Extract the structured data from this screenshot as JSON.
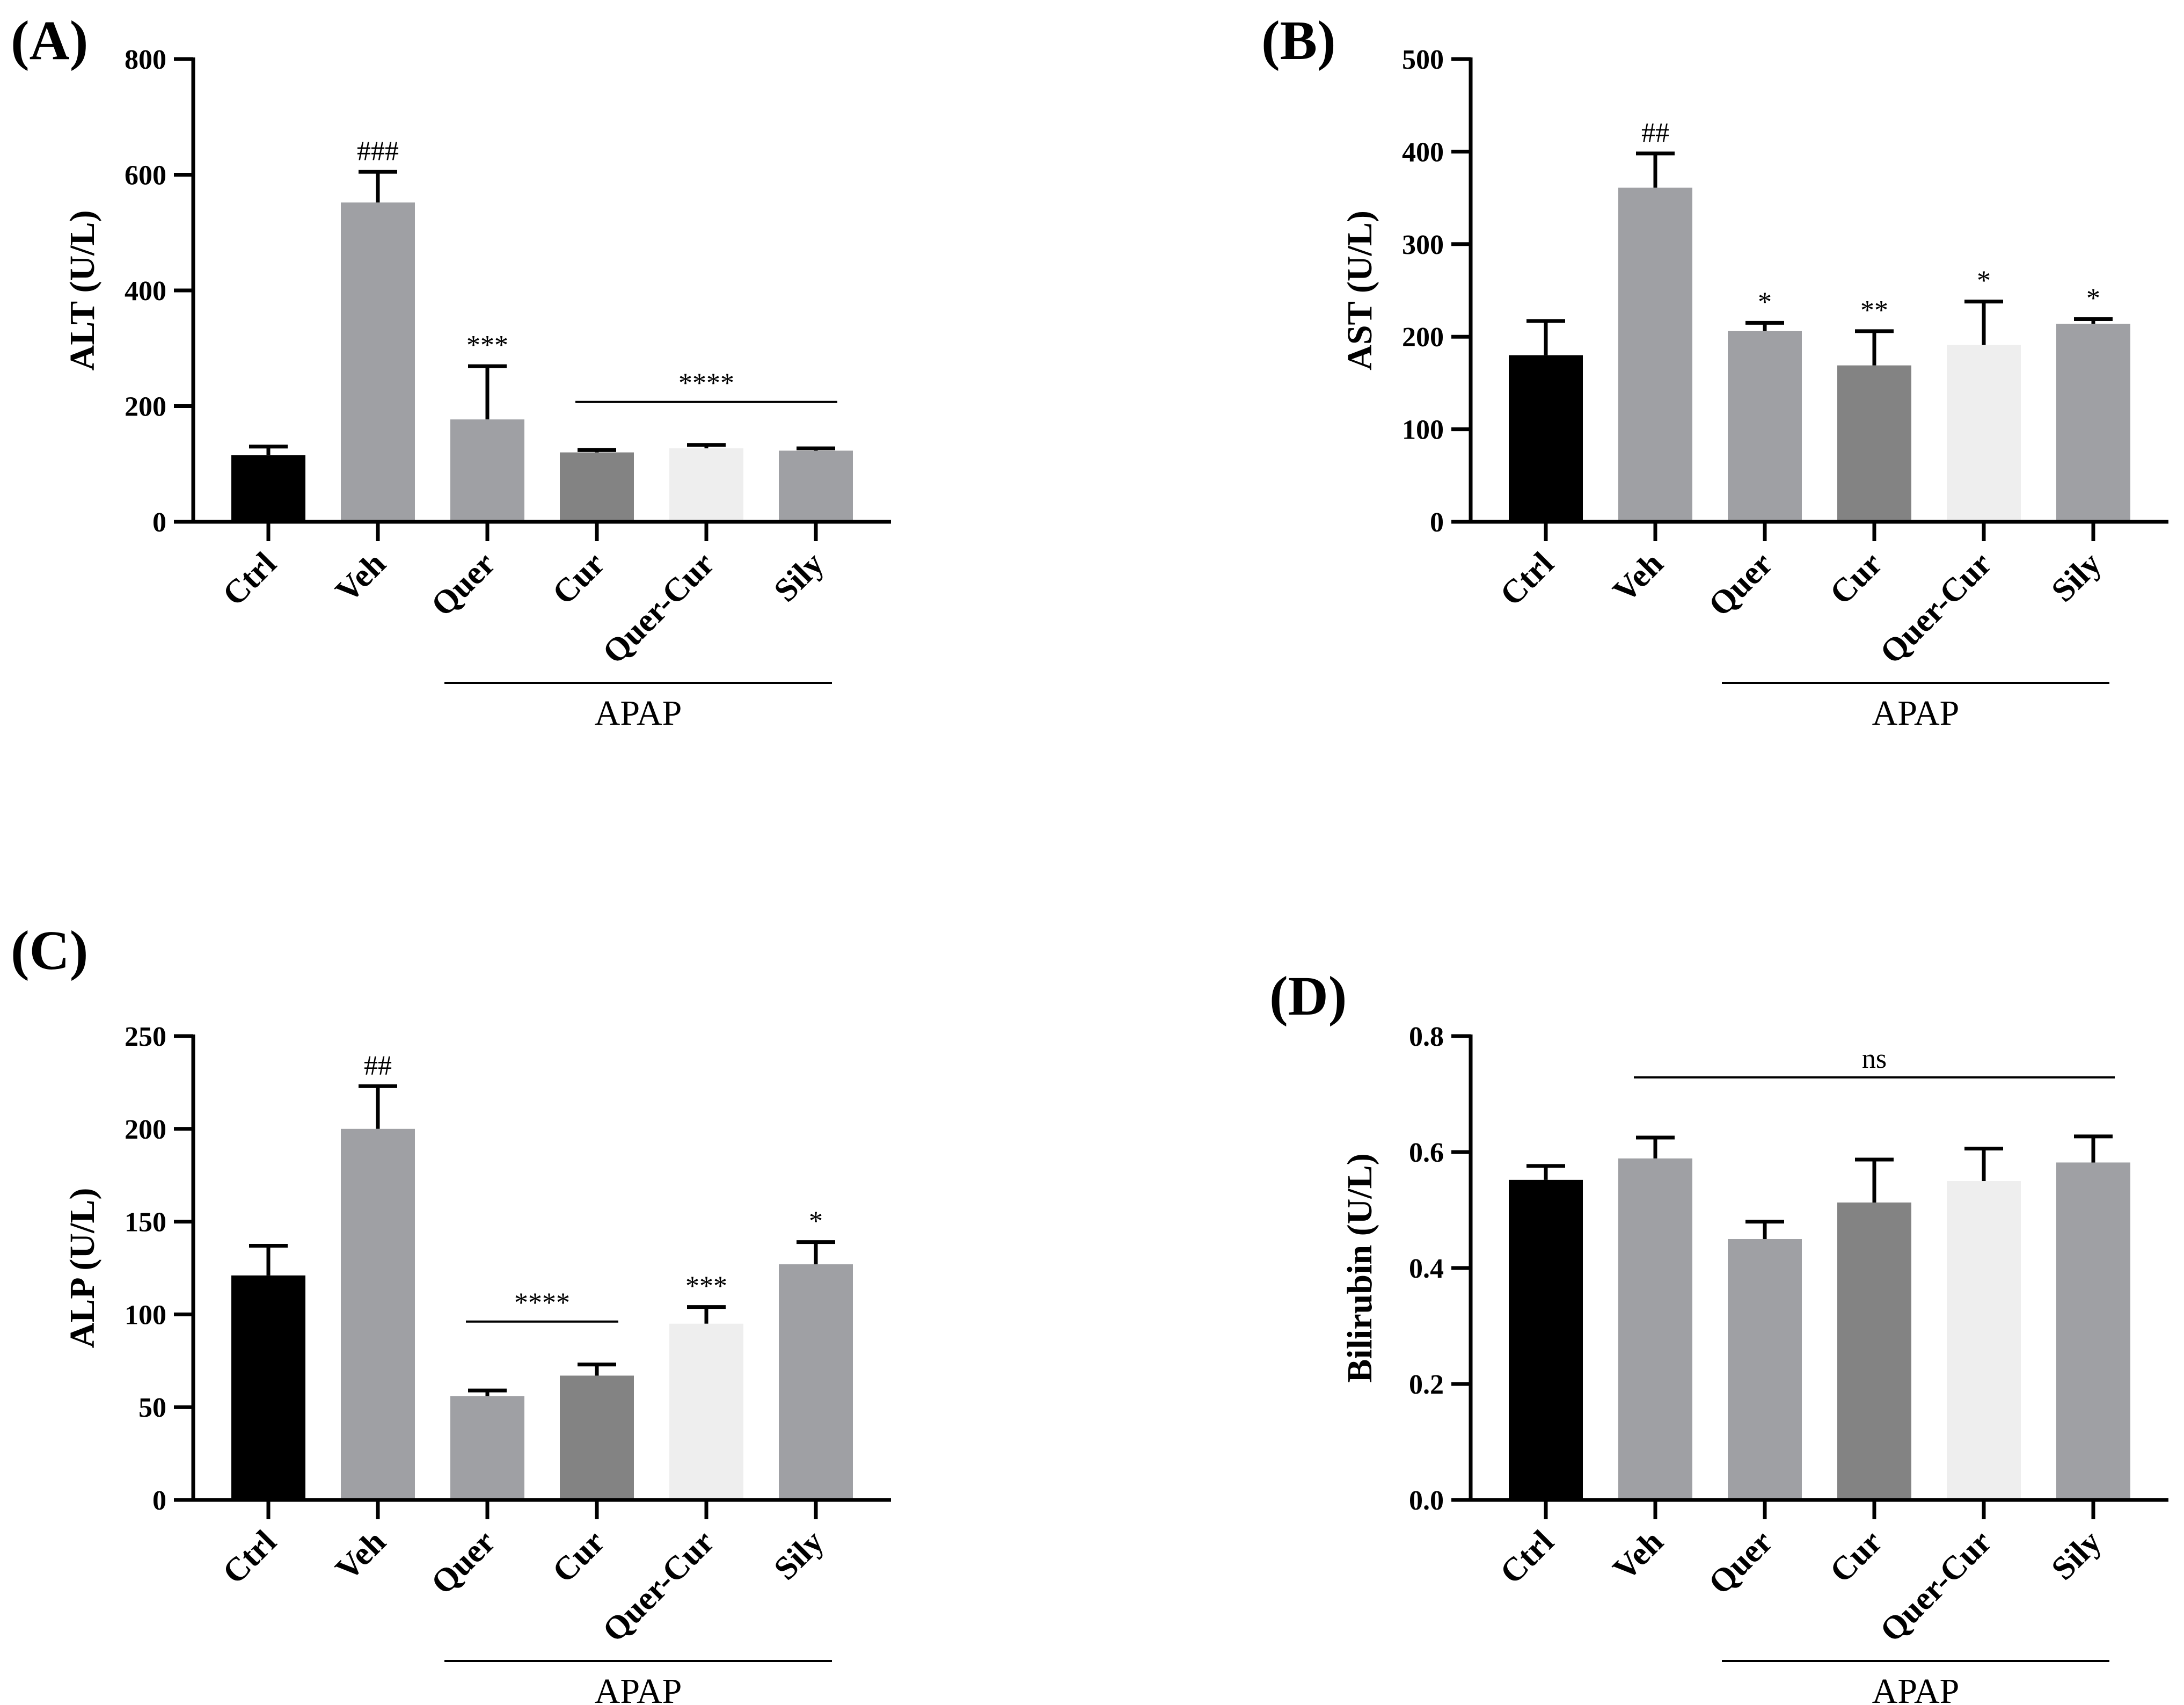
{
  "figure": {
    "group_label": "APAP",
    "colors": {
      "Ctrl": "#000000",
      "Veh": "#9fa0a4",
      "Quer": "#9fa0a4",
      "Cur": "#838383",
      "Quer-Cur": "#eeeeee",
      "Sily": "#9fa0a4"
    }
  },
  "chart_data": [
    {
      "panel": "(A)",
      "type": "bar",
      "ylabel": "ALT (U/L)",
      "categories": [
        "Ctrl",
        "Veh",
        "Quer",
        "Cur",
        "Quer-Cur",
        "Sily"
      ],
      "values": [
        115,
        552,
        177,
        120,
        127,
        123
      ],
      "errors": [
        15,
        53,
        92,
        4,
        6,
        4
      ],
      "ylim": [
        0,
        800
      ],
      "yticks": [
        0,
        200,
        400,
        600,
        800
      ],
      "yticklabels": [
        "0",
        "200",
        "400",
        "600",
        "800"
      ],
      "annotations": [
        {
          "category": "Veh",
          "text": "###"
        },
        {
          "category": "Quer",
          "text": "***"
        }
      ],
      "brackets": [
        {
          "from": "Cur",
          "to": "Sily",
          "text": "****"
        }
      ],
      "apap_from": "Quer",
      "apap_to": "Sily"
    },
    {
      "panel": "(B)",
      "type": "bar",
      "ylabel": "AST (U/L)",
      "categories": [
        "Ctrl",
        "Veh",
        "Quer",
        "Cur",
        "Quer-Cur",
        "Sily"
      ],
      "values": [
        180,
        361,
        206,
        169,
        191,
        214
      ],
      "errors": [
        37,
        37,
        9,
        37,
        47,
        5
      ],
      "ylim": [
        0,
        500
      ],
      "yticks": [
        0,
        100,
        200,
        300,
        400,
        500
      ],
      "yticklabels": [
        "0",
        "100",
        "200",
        "300",
        "400",
        "500"
      ],
      "annotations": [
        {
          "category": "Veh",
          "text": "##"
        },
        {
          "category": "Quer",
          "text": "*"
        },
        {
          "category": "Cur",
          "text": "**"
        },
        {
          "category": "Quer-Cur",
          "text": "*"
        },
        {
          "category": "Sily",
          "text": "*"
        }
      ],
      "brackets": [],
      "apap_from": "Quer",
      "apap_to": "Sily"
    },
    {
      "panel": "(C)",
      "type": "bar",
      "ylabel": "ALP (U/L)",
      "categories": [
        "Ctrl",
        "Veh",
        "Quer",
        "Cur",
        "Quer-Cur",
        "Sily"
      ],
      "values": [
        121,
        200,
        56,
        67,
        95,
        127
      ],
      "errors": [
        16,
        23,
        3,
        6,
        9,
        12
      ],
      "ylim": [
        0,
        250
      ],
      "yticks": [
        0,
        50,
        100,
        150,
        200,
        250
      ],
      "yticklabels": [
        "0",
        "50",
        "100",
        "150",
        "200",
        "250"
      ],
      "annotations": [
        {
          "category": "Veh",
          "text": "##"
        },
        {
          "category": "Quer-Cur",
          "text": "***"
        },
        {
          "category": "Sily",
          "text": "*"
        }
      ],
      "brackets": [
        {
          "from": "Quer",
          "to": "Cur",
          "text": "****"
        }
      ],
      "apap_from": "Quer",
      "apap_to": "Sily"
    },
    {
      "panel": "(D)",
      "type": "bar",
      "ylabel": "Bilirubin (U/L)",
      "categories": [
        "Ctrl",
        "Veh",
        "Quer",
        "Cur",
        "Quer-Cur",
        "Sily"
      ],
      "values": [
        0.552,
        0.589,
        0.45,
        0.513,
        0.55,
        0.582
      ],
      "errors": [
        0.024,
        0.036,
        0.03,
        0.074,
        0.056,
        0.045
      ],
      "ylim": [
        0,
        0.8
      ],
      "yticks": [
        0,
        0.2,
        0.4,
        0.6,
        0.8
      ],
      "yticklabels": [
        "0.0",
        "0.2",
        "0.4",
        "0.6",
        "0.8"
      ],
      "annotations": [],
      "brackets": [
        {
          "from": "Veh",
          "to": "Sily",
          "text": "ns"
        }
      ],
      "apap_from": "Quer",
      "apap_to": "Sily"
    }
  ]
}
